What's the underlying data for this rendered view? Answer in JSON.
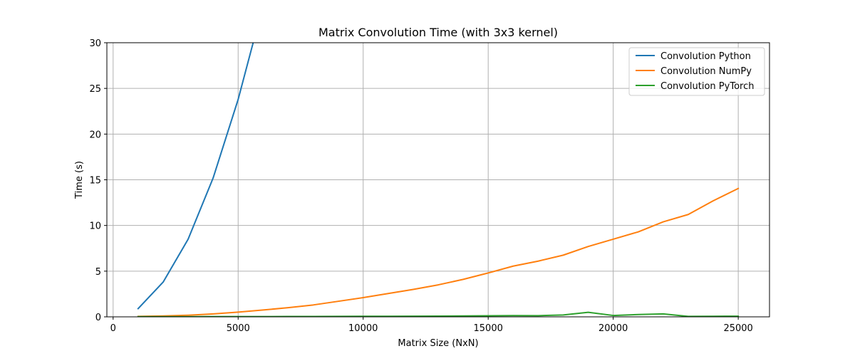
{
  "chart_data": {
    "type": "line",
    "title": "Matrix Convolution Time (with 3x3 kernel)",
    "xlabel": "Matrix Size (NxN)",
    "ylabel": "Time (s)",
    "xlim": [
      -250,
      26250
    ],
    "ylim": [
      0,
      30
    ],
    "xticks": [
      0,
      5000,
      10000,
      15000,
      20000,
      25000
    ],
    "yticks": [
      0,
      5,
      10,
      15,
      20,
      25,
      30
    ],
    "grid": true,
    "legend_position": "top-right",
    "series": [
      {
        "name": "Convolution Python",
        "color": "#1f77b4",
        "points": [
          [
            1000,
            0.9
          ],
          [
            2000,
            3.8
          ],
          [
            3000,
            8.5
          ],
          [
            4000,
            15.2
          ],
          [
            5000,
            23.8
          ],
          [
            5600,
            30.0
          ]
        ]
      },
      {
        "name": "Convolution NumPy",
        "color": "#ff7f0e",
        "points": [
          [
            1000,
            0.05
          ],
          [
            2000,
            0.1
          ],
          [
            3000,
            0.18
          ],
          [
            4000,
            0.32
          ],
          [
            5000,
            0.52
          ],
          [
            6000,
            0.75
          ],
          [
            7000,
            1.0
          ],
          [
            8000,
            1.3
          ],
          [
            9000,
            1.7
          ],
          [
            10000,
            2.1
          ],
          [
            11000,
            2.55
          ],
          [
            12000,
            3.0
          ],
          [
            13000,
            3.5
          ],
          [
            14000,
            4.1
          ],
          [
            15000,
            4.8
          ],
          [
            16000,
            5.55
          ],
          [
            17000,
            6.1
          ],
          [
            18000,
            6.75
          ],
          [
            19000,
            7.7
          ],
          [
            20000,
            8.5
          ],
          [
            21000,
            9.3
          ],
          [
            22000,
            10.4
          ],
          [
            23000,
            11.2
          ],
          [
            24000,
            12.7
          ],
          [
            25000,
            14.05
          ]
        ]
      },
      {
        "name": "Convolution PyTorch",
        "color": "#2ca02c",
        "points": [
          [
            1000,
            0.02
          ],
          [
            2000,
            0.02
          ],
          [
            3000,
            0.02
          ],
          [
            4000,
            0.03
          ],
          [
            5000,
            0.03
          ],
          [
            6000,
            0.03
          ],
          [
            7000,
            0.04
          ],
          [
            8000,
            0.04
          ],
          [
            9000,
            0.05
          ],
          [
            10000,
            0.06
          ],
          [
            11000,
            0.06
          ],
          [
            12000,
            0.07
          ],
          [
            13000,
            0.08
          ],
          [
            14000,
            0.1
          ],
          [
            15000,
            0.12
          ],
          [
            16000,
            0.14
          ],
          [
            17000,
            0.13
          ],
          [
            18000,
            0.2
          ],
          [
            19000,
            0.5
          ],
          [
            20000,
            0.15
          ],
          [
            21000,
            0.25
          ],
          [
            22000,
            0.32
          ],
          [
            23000,
            0.05
          ],
          [
            24000,
            0.06
          ],
          [
            25000,
            0.07
          ]
        ]
      }
    ]
  }
}
